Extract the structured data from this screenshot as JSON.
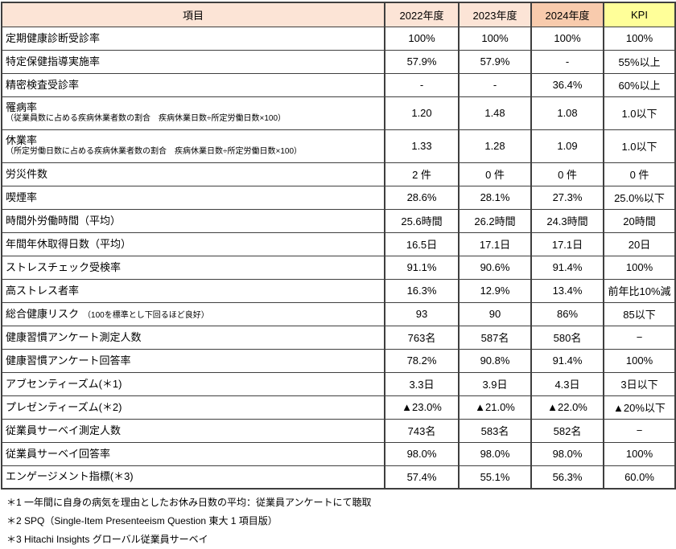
{
  "colors": {
    "header_bg": "#fce4d6",
    "header_bg_2024": "#f8cbad",
    "header_bg_kpi": "#ffff99",
    "border": "#3f3f3f",
    "text": "#000000"
  },
  "table": {
    "columns": [
      {
        "key": "item",
        "label": "項目",
        "bg": "#fce4d6"
      },
      {
        "key": "fy2022",
        "label": "2022年度",
        "bg": "#fce4d6"
      },
      {
        "key": "fy2023",
        "label": "2023年度",
        "bg": "#fce4d6"
      },
      {
        "key": "fy2024",
        "label": "2024年度",
        "bg": "#f8cbad"
      },
      {
        "key": "kpi",
        "label": "KPI",
        "bg": "#ffff99"
      }
    ],
    "rows": [
      {
        "label": "定期健康診断受診率",
        "values": [
          "100%",
          "100%",
          "100%",
          "100%"
        ]
      },
      {
        "label": "特定保健指導実施率",
        "values": [
          "57.9%",
          "57.9%",
          "-",
          "55%以上"
        ]
      },
      {
        "label": "精密検査受診率",
        "values": [
          "-",
          "-",
          "36.4%",
          "60%以上"
        ]
      },
      {
        "label": "罹病率",
        "sublabel": "（従業員数に占める疾病休業者数の割合　疾病休業日数÷所定労働日数×100）",
        "sublabel_layout": "below",
        "values": [
          "1.20",
          "1.48",
          "1.08",
          "1.0以下"
        ]
      },
      {
        "label": "休業率",
        "sublabel": "（所定労働日数に占める疾病休業者数の割合　疾病休業日数÷所定労働日数×100）",
        "sublabel_layout": "below",
        "values": [
          "1.33",
          "1.28",
          "1.09",
          "1.0以下"
        ]
      },
      {
        "label": "労災件数",
        "values": [
          "2 件",
          "0 件",
          "0 件",
          "0 件"
        ]
      },
      {
        "label": "喫煙率",
        "values": [
          "28.6%",
          "28.1%",
          "27.3%",
          "25.0%以下"
        ]
      },
      {
        "label": "時間外労働時間（平均）",
        "values": [
          "25.6時間",
          "26.2時間",
          "24.3時間",
          "20時間"
        ]
      },
      {
        "label": "年間年休取得日数（平均）",
        "values": [
          "16.5日",
          "17.1日",
          "17.1日",
          "20日"
        ]
      },
      {
        "label": "ストレスチェック受検率",
        "values": [
          "91.1%",
          "90.6%",
          "91.4%",
          "100%"
        ]
      },
      {
        "label": "高ストレス者率",
        "values": [
          "16.3%",
          "12.9%",
          "13.4%",
          "前年比10%減"
        ]
      },
      {
        "label": "総合健康リスク",
        "sublabel": "（100を標準とし下回るほど良好）",
        "sublabel_layout": "inline",
        "values": [
          "93",
          "90",
          "86%",
          "85以下"
        ]
      },
      {
        "label": "健康習慣アンケート測定人数",
        "values": [
          "763名",
          "587名",
          "580名",
          "−"
        ]
      },
      {
        "label": "健康習慣アンケート回答率",
        "values": [
          "78.2%",
          "90.8%",
          "91.4%",
          "100%"
        ]
      },
      {
        "label": "アブセンティーズム(＊1)",
        "values": [
          "3.3日",
          "3.9日",
          "4.3日",
          "3日以下"
        ]
      },
      {
        "label": "プレゼンティーズム(＊2)",
        "values": [
          "▲23.0%",
          "▲21.0%",
          "▲22.0%",
          "▲20%以下"
        ]
      },
      {
        "label": "従業員サーベイ測定人数",
        "values": [
          "743名",
          "583名",
          "582名",
          "−"
        ]
      },
      {
        "label": "従業員サーベイ回答率",
        "values": [
          "98.0%",
          "98.0%",
          "98.0%",
          "100%"
        ]
      },
      {
        "label": "エンゲージメント指標(＊3)",
        "values": [
          "57.4%",
          "55.1%",
          "56.3%",
          "60.0%"
        ]
      }
    ]
  },
  "footnotes": [
    "＊1 一年間に自身の病気を理由としたお休み日数の平均：従業員アンケートにて聴取",
    "＊2 SPQ（Single-Item Presenteeism Question 東大 1 項目版）",
    "＊3 Hitachi Insights グローバル従業員サーベイ"
  ]
}
